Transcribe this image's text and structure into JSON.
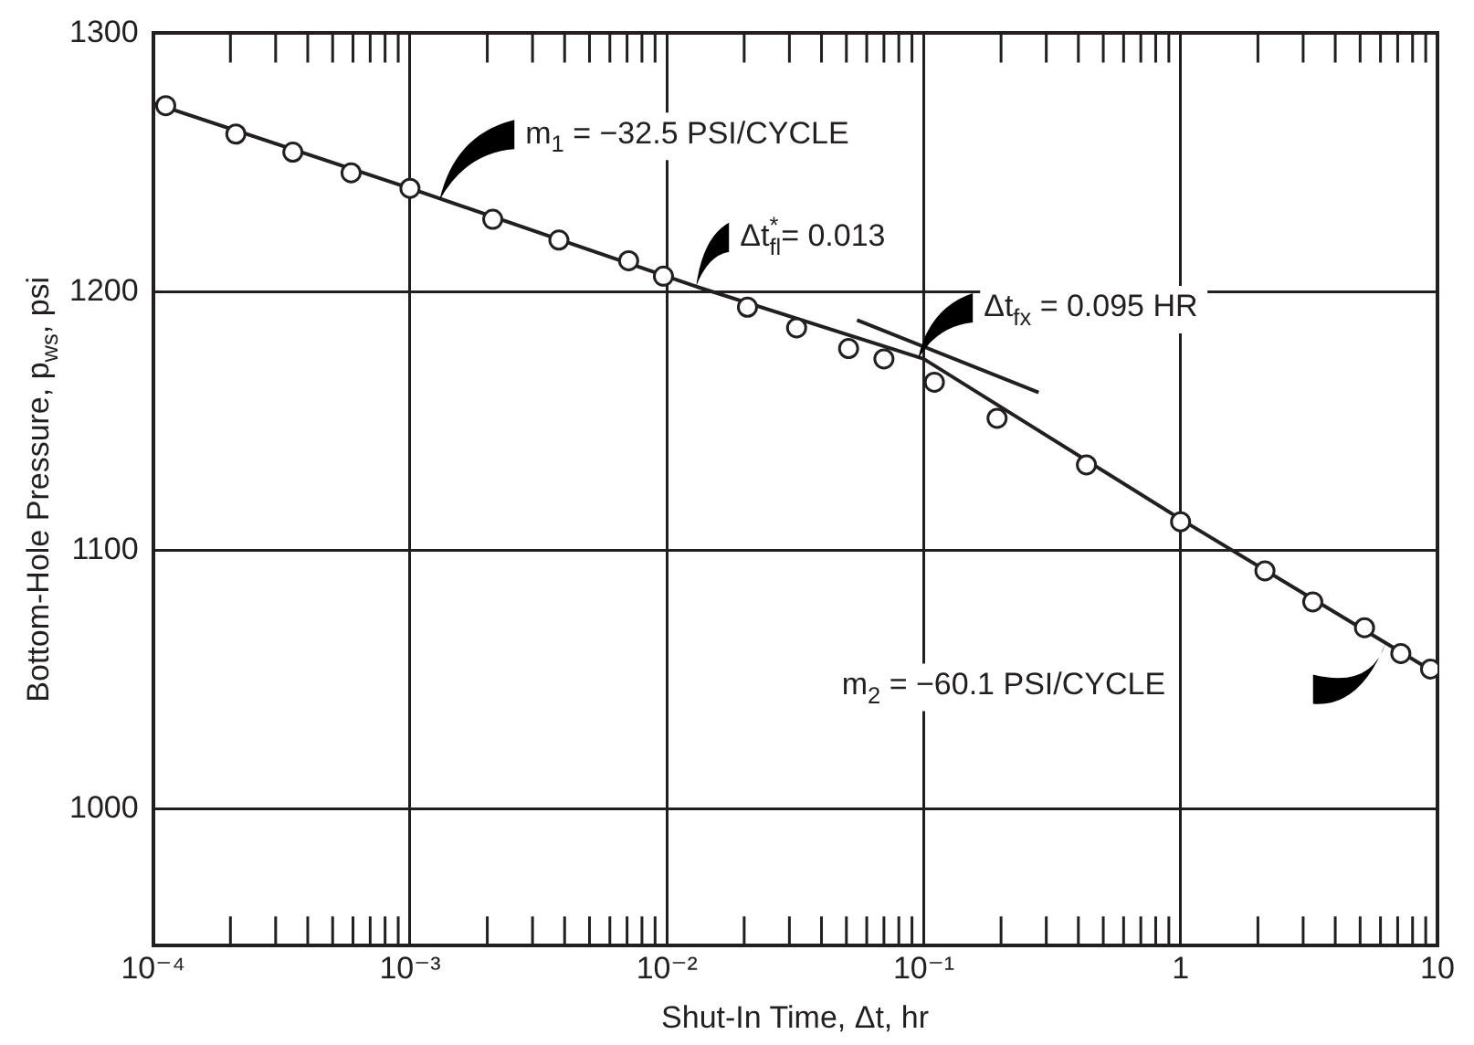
{
  "chart_data": {
    "type": "scatter",
    "xlabel": "Shut-In Time, Δt, hr",
    "ylabel": "Bottom-Hole Pressure, p$_{ws}$, psi",
    "log": "x",
    "grid": true,
    "legend": false,
    "xlim": [
      0.0001,
      10
    ],
    "ylim": [
      947,
      1300
    ],
    "xticks": [
      {
        "value": 0.0001,
        "label": "10⁻⁴"
      },
      {
        "value": 0.0002,
        "label": null
      },
      {
        "value": 0.0003,
        "label": null
      },
      {
        "value": 0.0004,
        "label": null
      },
      {
        "value": 0.0005,
        "label": null
      },
      {
        "value": 0.0006,
        "label": null
      },
      {
        "value": 0.0007,
        "label": null
      },
      {
        "value": 0.0008,
        "label": null
      },
      {
        "value": 0.0009,
        "label": null
      },
      {
        "value": 0.001,
        "label": "10⁻³"
      },
      {
        "value": 0.002,
        "label": null
      },
      {
        "value": 0.003,
        "label": null
      },
      {
        "value": 0.004,
        "label": null
      },
      {
        "value": 0.005,
        "label": null
      },
      {
        "value": 0.006,
        "label": null
      },
      {
        "value": 0.007,
        "label": null
      },
      {
        "value": 0.008,
        "label": null
      },
      {
        "value": 0.009,
        "label": null
      },
      {
        "value": 0.01,
        "label": "10⁻²"
      },
      {
        "value": 0.02,
        "label": null
      },
      {
        "value": 0.03,
        "label": null
      },
      {
        "value": 0.04,
        "label": null
      },
      {
        "value": 0.05,
        "label": null
      },
      {
        "value": 0.06,
        "label": null
      },
      {
        "value": 0.07,
        "label": null
      },
      {
        "value": 0.08,
        "label": null
      },
      {
        "value": 0.09,
        "label": null
      },
      {
        "value": 0.1,
        "label": "10⁻¹"
      },
      {
        "value": 0.2,
        "label": null
      },
      {
        "value": 0.3,
        "label": null
      },
      {
        "value": 0.4,
        "label": null
      },
      {
        "value": 0.5,
        "label": null
      },
      {
        "value": 0.6,
        "label": null
      },
      {
        "value": 0.7,
        "label": null
      },
      {
        "value": 0.8,
        "label": null
      },
      {
        "value": 0.9,
        "label": null
      },
      1,
      {
        "value": 2,
        "label": null
      },
      {
        "value": 3,
        "label": null
      },
      {
        "value": 4,
        "label": null
      },
      {
        "value": 5,
        "label": null
      },
      {
        "value": 6,
        "label": null
      },
      {
        "value": 7,
        "label": null
      },
      {
        "value": 8,
        "label": null
      },
      {
        "value": 9,
        "label": null
      },
      10
    ],
    "yticks": [
      1000,
      1100,
      1200,
      1300
    ],
    "series": [
      {
        "type": "scatter",
        "color": "#231f20",
        "marker": "circle",
        "x": [
          0.000112,
          0.00021,
          0.00035,
          0.00059,
          0.001,
          0.0021,
          0.0038,
          0.0071,
          0.0097,
          0.0206,
          0.032,
          0.051,
          0.07,
          0.11,
          0.193,
          0.43,
          1.0,
          2.13,
          3.27,
          5.2,
          7.2,
          9.4
        ],
        "values": [
          1272,
          1261,
          1254,
          1246,
          1240,
          1228,
          1220,
          1212,
          1206,
          1194,
          1186,
          1178,
          1174,
          1165,
          1151,
          1133,
          1111,
          1092,
          1080,
          1070,
          1060,
          1054
        ]
      },
      {
        "type": "line",
        "color": "#231f20",
        "marker": "none",
        "line_style": "solid",
        "x": [
          0.0001,
          0.001,
          0.013,
          0.1,
          1,
          10
        ],
        "values": [
          1273,
          1240,
          1202,
          1174,
          1112,
          1052
        ]
      },
      {
        "type": "line",
        "color": "#231f20",
        "marker": "none",
        "line_style": "solid",
        "x": [
          0.055,
          0.28
        ],
        "values": [
          1189,
          1161
        ]
      }
    ],
    "annotations": [
      "m$_{1}$ = −32.5 PSI/CYCLE",
      {
        "text": "Δt$^{*}$$_{fl}$= 0.013",
        "x": 0.013,
        "y": 1202
      },
      {
        "text": "Δt$_{fx}$ = 0.095 HR",
        "x": 0.095,
        "y": 1174
      },
      "m$_{2}$ = −60.1 PSI/CYCLE"
    ]
  }
}
